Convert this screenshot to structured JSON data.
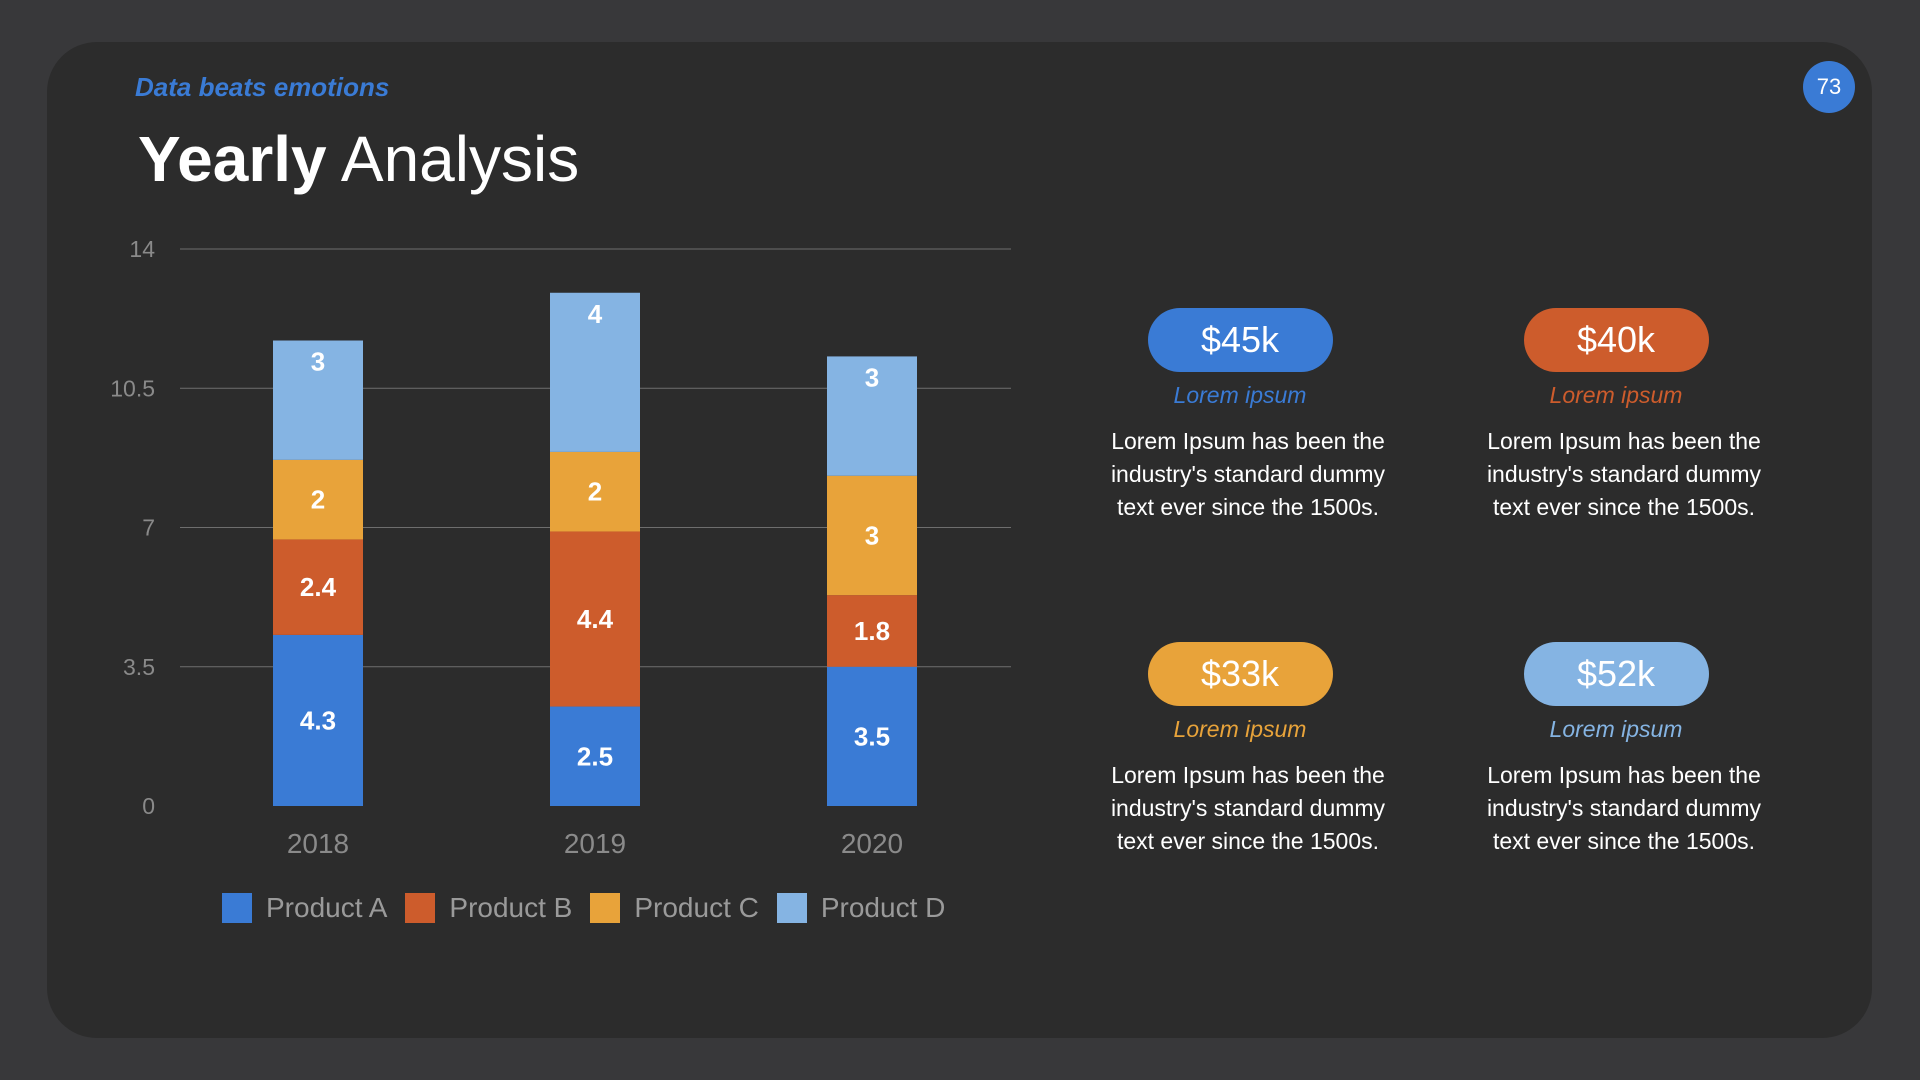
{
  "slide": {
    "kicker": "Data beats emotions",
    "title_bold": "Yearly",
    "title_light": "Analysis",
    "page_number": "73"
  },
  "colors": {
    "Product A": "#3a7bd5",
    "Product B": "#cd5c2c",
    "Product C": "#e8a33a",
    "Product D": "#85b4e3"
  },
  "chart_data": {
    "type": "bar",
    "stacked": true,
    "categories": [
      "2018",
      "2019",
      "2020"
    ],
    "series": [
      {
        "name": "Product A",
        "values": [
          4.3,
          2.5,
          3.5
        ]
      },
      {
        "name": "Product B",
        "values": [
          2.4,
          4.4,
          1.8
        ]
      },
      {
        "name": "Product C",
        "values": [
          2,
          2,
          3
        ]
      },
      {
        "name": "Product D",
        "values": [
          3,
          4,
          3
        ]
      }
    ],
    "yticks": [
      "0",
      "3.5",
      "7",
      "10.5",
      "14"
    ],
    "ylim": [
      0,
      14
    ],
    "grid": true,
    "legend": "bottom"
  },
  "kpis": [
    {
      "value": "$45k",
      "caption": "Lorem ipsum",
      "text": "Lorem Ipsum has been the industry's standard dummy text ever since the 1500s.",
      "color": "#3a7bd5"
    },
    {
      "value": "$40k",
      "caption": "Lorem ipsum",
      "text": "Lorem Ipsum has been the industry's standard dummy text ever since the 1500s.",
      "color": "#cd5c2c"
    },
    {
      "value": "$33k",
      "caption": "Lorem ipsum",
      "text": "Lorem Ipsum has been the industry's standard dummy text ever since the 1500s.",
      "color": "#e8a33a"
    },
    {
      "value": "$52k",
      "caption": "Lorem ipsum",
      "text": "Lorem Ipsum has been the industry's standard dummy text ever since the 1500s.",
      "color": "#85b4e3"
    }
  ]
}
